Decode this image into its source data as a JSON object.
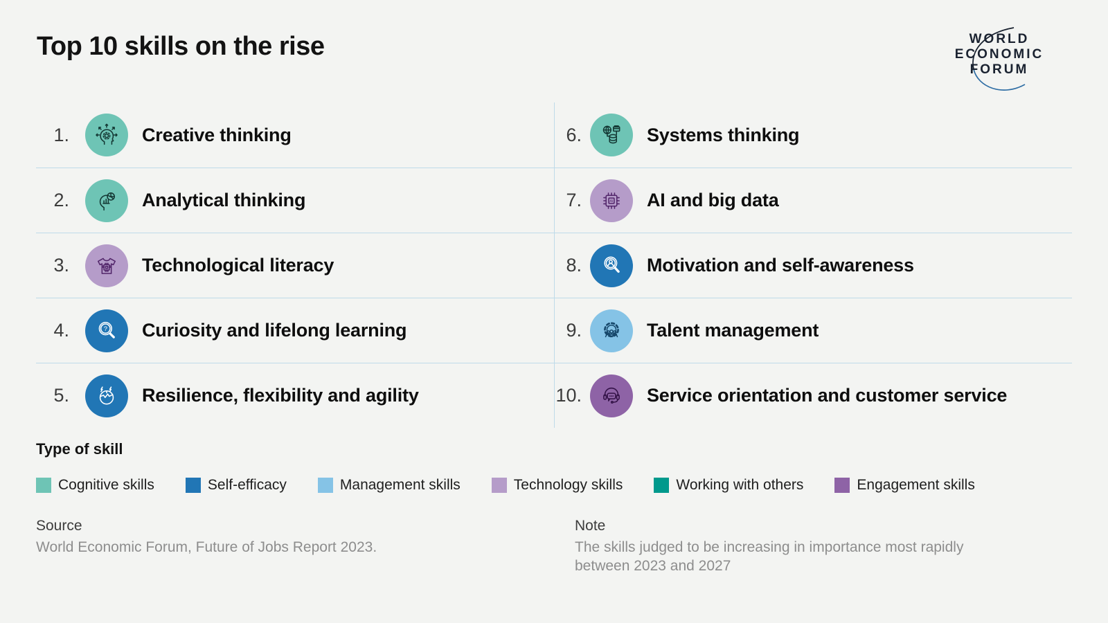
{
  "title": "Top 10 skills on the rise",
  "logo": {
    "lines": [
      "WORLD",
      "ECONOMIC",
      "FORUM"
    ]
  },
  "skills": [
    {
      "rank": "1.",
      "label": "Creative thinking",
      "type": "Cognitive skills",
      "color": "#6EC4B5",
      "icon_color": "#143834",
      "icon": "head-gear-arrows-icon"
    },
    {
      "rank": "2.",
      "label": "Analytical thinking",
      "type": "Cognitive skills",
      "color": "#6EC4B5",
      "icon_color": "#143834",
      "icon": "head-chart-icon"
    },
    {
      "rank": "3.",
      "label": "Technological literacy",
      "type": "Technology skills",
      "color": "#B59CC9",
      "icon_color": "#53276B",
      "icon": "tshirt-chip-icon"
    },
    {
      "rank": "4.",
      "label": "Curiosity and lifelong learning",
      "type": "Self-efficacy",
      "color": "#2176B5",
      "icon_color": "#FFFFFF",
      "icon": "magnifier-question-icon"
    },
    {
      "rank": "5.",
      "label": "Resilience, flexibility and agility",
      "type": "Self-efficacy",
      "color": "#2176B5",
      "icon_color": "#FFFFFF",
      "icon": "head-lightning-icon"
    },
    {
      "rank": "6.",
      "label": "Systems thinking",
      "type": "Cognitive skills",
      "color": "#6EC4B5",
      "icon_color": "#143834",
      "icon": "globe-database-icon"
    },
    {
      "rank": "7.",
      "label": "AI and big data",
      "type": "Technology skills",
      "color": "#B59CC9",
      "icon_color": "#53276B",
      "icon": "ai-chip-icon"
    },
    {
      "rank": "8.",
      "label": "Motivation and self-awareness",
      "type": "Self-efficacy",
      "color": "#2176B5",
      "icon_color": "#FFFFFF",
      "icon": "magnifier-person-icon"
    },
    {
      "rank": "9.",
      "label": "Talent management",
      "type": "Management skills",
      "color": "#85C3E6",
      "icon_color": "#17486B",
      "icon": "gear-people-icon"
    },
    {
      "rank": "10.",
      "label": "Service orientation and customer service",
      "type": "Engagement skills",
      "color": "#8E63A6",
      "icon_color": "#331247",
      "icon": "headset-bubble-icon"
    }
  ],
  "legend": {
    "heading": "Type of skill",
    "items": [
      {
        "label": "Cognitive skills",
        "color": "#6EC4B5"
      },
      {
        "label": "Self-efficacy",
        "color": "#2176B5"
      },
      {
        "label": "Management skills",
        "color": "#85C3E6"
      },
      {
        "label": "Technology skills",
        "color": "#B59CC9"
      },
      {
        "label": "Working with others",
        "color": "#00998C"
      },
      {
        "label": "Engagement skills",
        "color": "#8E63A6"
      }
    ]
  },
  "source": {
    "label": "Source",
    "text": "World Economic Forum, Future of Jobs Report 2023."
  },
  "note": {
    "label": "Note",
    "text": "The skills judged to be increasing in importance most rapidly between 2023 and 2027"
  },
  "chart_data": {
    "type": "table",
    "title": "Top 10 skills on the rise",
    "columns": [
      "rank",
      "skill",
      "skill_type"
    ],
    "rows": [
      [
        1,
        "Creative thinking",
        "Cognitive skills"
      ],
      [
        2,
        "Analytical thinking",
        "Cognitive skills"
      ],
      [
        3,
        "Technological literacy",
        "Technology skills"
      ],
      [
        4,
        "Curiosity and lifelong learning",
        "Self-efficacy"
      ],
      [
        5,
        "Resilience, flexibility and agility",
        "Self-efficacy"
      ],
      [
        6,
        "Systems thinking",
        "Cognitive skills"
      ],
      [
        7,
        "AI and big data",
        "Technology skills"
      ],
      [
        8,
        "Motivation and self-awareness",
        "Self-efficacy"
      ],
      [
        9,
        "Talent management",
        "Management skills"
      ],
      [
        10,
        "Service orientation and customer service",
        "Engagement skills"
      ]
    ],
    "legend_title": "Type of skill",
    "legend": [
      "Cognitive skills",
      "Self-efficacy",
      "Management skills",
      "Technology skills",
      "Working with others",
      "Engagement skills"
    ],
    "legend_position": "bottom"
  }
}
